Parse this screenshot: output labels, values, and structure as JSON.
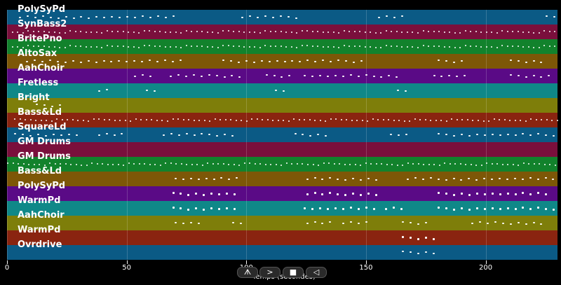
{
  "tracks": [
    {
      "label": "PolySyPd",
      "color": "#0b5a85"
    },
    {
      "label": "SynBass2",
      "color": "#7a0f3c"
    },
    {
      "label": "BritePno",
      "color": "#12822c"
    },
    {
      "label": "AltoSax",
      "color": "#7d5707"
    },
    {
      "label": "AahChoir",
      "color": "#5a0a86"
    },
    {
      "label": "Fretless",
      "color": "#0f8888"
    },
    {
      "label": "Bright",
      "color": "#7e7e0a"
    },
    {
      "label": "Bass&Ld",
      "color": "#8a2410"
    },
    {
      "label": "SquareLd",
      "color": "#0b5a85"
    },
    {
      "label": "GM Drums",
      "color": "#7a0f3c"
    },
    {
      "label": "GM Drums",
      "color": "#12822c"
    },
    {
      "label": "Bass&Ld",
      "color": "#7d5707"
    },
    {
      "label": "PolySyPd",
      "color": "#5a0a86"
    },
    {
      "label": "WarmPd",
      "color": "#0f8888"
    },
    {
      "label": "AahChoir",
      "color": "#7e7e0a"
    },
    {
      "label": "WarmPd",
      "color": "#8a2410"
    },
    {
      "label": "Ovrdrive",
      "color": "#0b5a85"
    }
  ],
  "x_axis": {
    "label": "Temps (secondes)",
    "ticks": [
      "0",
      "50",
      "100",
      "150",
      "200"
    ],
    "tick_values": [
      0,
      50,
      100,
      150,
      200
    ],
    "max": 230
  },
  "controls": [
    {
      "icon": "play-icon",
      "symbol": "ᗑ"
    },
    {
      "icon": "forward-icon",
      "symbol": ">"
    },
    {
      "icon": "stop-icon",
      "symbol": "■"
    },
    {
      "icon": "rewind-icon",
      "symbol": "◁"
    }
  ]
}
